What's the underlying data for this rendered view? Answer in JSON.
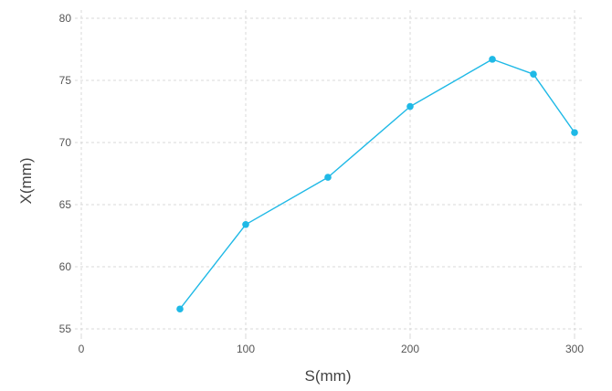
{
  "chart_data": {
    "type": "line",
    "title": "",
    "xlabel": "S(mm)",
    "ylabel": "X(mm)",
    "xlim": [
      0,
      300
    ],
    "ylim": [
      55,
      80
    ],
    "x_ticks": [
      0,
      100,
      200,
      300
    ],
    "y_ticks": [
      55,
      60,
      65,
      70,
      75,
      80
    ],
    "grid": true,
    "legend": "none",
    "series": [
      {
        "color": "#1fb9e6",
        "x": [
          60,
          100,
          150,
          200,
          250,
          275,
          300
        ],
        "y": [
          56.6,
          63.4,
          67.2,
          72.9,
          76.7,
          75.5,
          70.8
        ]
      }
    ]
  }
}
